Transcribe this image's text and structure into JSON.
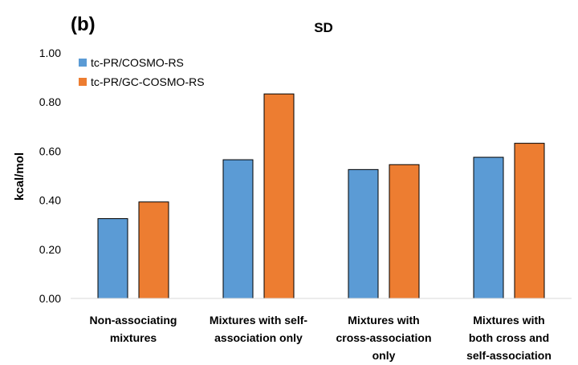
{
  "panel_label": "(b)",
  "chart_data": {
    "type": "bar",
    "title": "SD",
    "xlabel": "",
    "ylabel": "kcal/mol",
    "ylim": [
      0,
      1.0
    ],
    "yticks": [
      "0.00",
      "0.20",
      "0.40",
      "0.60",
      "0.80",
      "1.00"
    ],
    "grid": false,
    "legend_position": "top-left",
    "categories": [
      [
        "Non-associating",
        "mixtures"
      ],
      [
        "Mixtures with self-",
        "association only"
      ],
      [
        "Mixtures with",
        "cross-association",
        "only"
      ],
      [
        "Mixtures with",
        "both cross and",
        "self-association"
      ]
    ],
    "series": [
      {
        "name": "tc-PR/COSMO-RS",
        "color": "#5b9bd5",
        "values": [
          0.325,
          0.565,
          0.525,
          0.575
        ]
      },
      {
        "name": "tc-PR/GC-COSMO-RS",
        "color": "#ed7d31",
        "values": [
          0.393,
          0.833,
          0.545,
          0.632
        ]
      }
    ]
  }
}
